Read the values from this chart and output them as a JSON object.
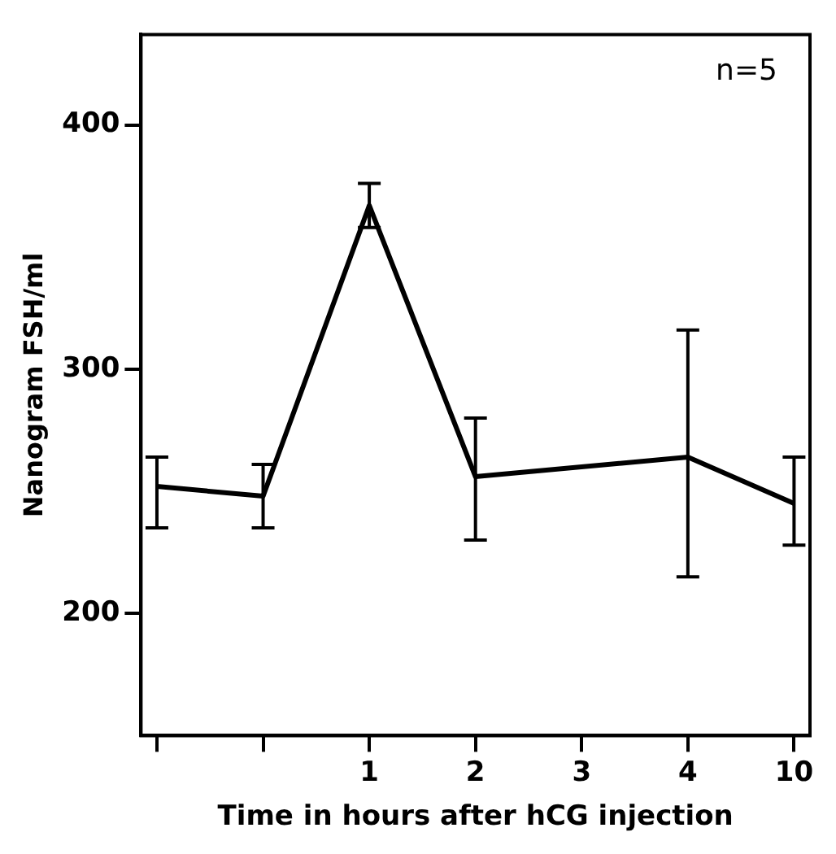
{
  "chart_data": {
    "type": "line",
    "xlabel": "Time in hours after hCG injection",
    "ylabel": "Nanogram FSH/ml",
    "categories": [
      null,
      null,
      "1",
      "2",
      "3",
      "4",
      "10"
    ],
    "series": [
      {
        "color": "#000000",
        "values": [
          252,
          248,
          367,
          256,
          null,
          264,
          245
        ],
        "errors": [
          [
            235,
            264
          ],
          [
            235,
            261
          ],
          [
            358,
            376
          ],
          [
            230,
            280
          ],
          null,
          [
            215,
            316
          ],
          [
            228,
            264
          ]
        ]
      }
    ],
    "ylim": [
      150,
      437
    ],
    "yticks": [
      200,
      300,
      400
    ],
    "grid": false,
    "legend": false,
    "marker": "none",
    "line_style": "solid",
    "annotations": [
      "n=5"
    ]
  }
}
